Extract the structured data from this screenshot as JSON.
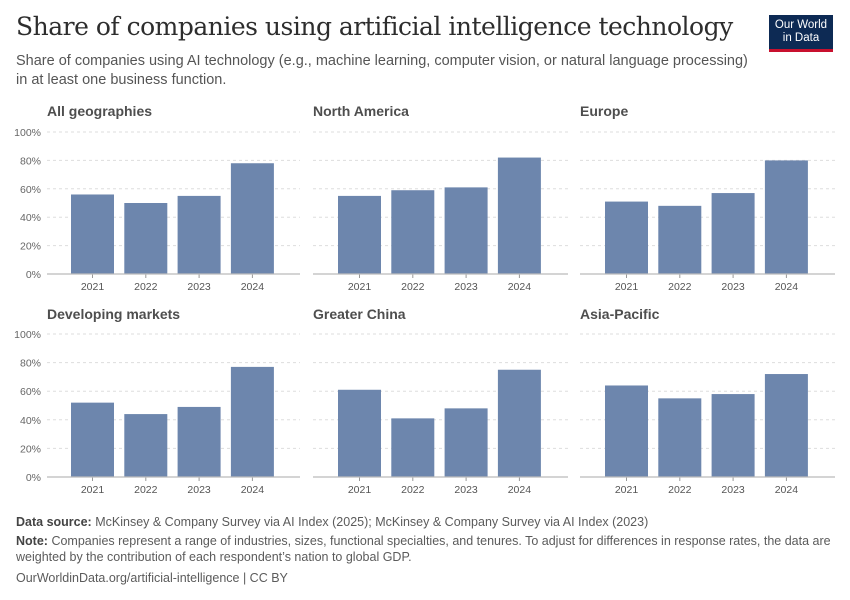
{
  "header": {
    "title": "Share of companies using artificial intelligence technology",
    "subtitle": "Share of companies using AI technology (e.g., machine learning, computer vision, or natural language processing) in at least one business function.",
    "logo": "Our World in Data"
  },
  "chart_data": {
    "type": "bar",
    "layout": "small multiples",
    "categories": [
      "2021",
      "2022",
      "2023",
      "2024"
    ],
    "ylim": [
      0,
      100
    ],
    "yticks": [
      "0%",
      "20%",
      "40%",
      "60%",
      "80%",
      "100%"
    ],
    "grid": true,
    "bar_color": "#6d86ad",
    "panels": [
      {
        "name": "All geographies",
        "values": [
          56,
          50,
          55,
          78
        ]
      },
      {
        "name": "North America",
        "values": [
          55,
          59,
          61,
          82
        ]
      },
      {
        "name": "Europe",
        "values": [
          51,
          48,
          57,
          80
        ]
      },
      {
        "name": "Developing markets",
        "values": [
          52,
          44,
          49,
          77
        ]
      },
      {
        "name": "Greater China",
        "values": [
          61,
          41,
          48,
          75
        ]
      },
      {
        "name": "Asia-Pacific",
        "values": [
          64,
          55,
          58,
          72
        ]
      }
    ]
  },
  "footer": {
    "source_label": "Data source:",
    "source": "McKinsey & Company Survey via AI Index (2025); McKinsey & Company Survey via AI Index (2023)",
    "note_label": "Note:",
    "note": "Companies represent a range of industries, sizes, functional specialties, and tenures. To adjust for differences in response rates, the data are weighted by the contribution of each respondent’s nation to global GDP.",
    "url": "OurWorldinData.org/artificial-intelligence | CC BY"
  }
}
